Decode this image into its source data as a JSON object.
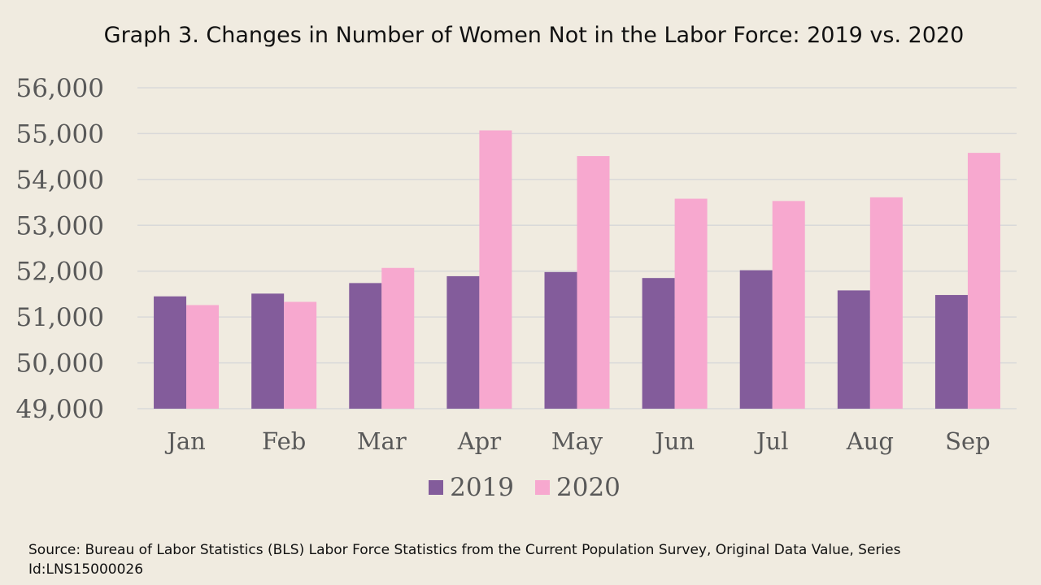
{
  "chart_data": {
    "type": "bar",
    "title": "Graph 3. Changes in Number of Women Not in the Labor Force: 2019 vs. 2020",
    "xlabel": "",
    "ylabel": "",
    "categories": [
      "Jan",
      "Feb",
      "Mar",
      "Apr",
      "May",
      "Jun",
      "Jul",
      "Aug",
      "Sep"
    ],
    "series": [
      {
        "name": "2019",
        "color": "#835c9b",
        "values": [
          51450,
          51510,
          51740,
          51890,
          51980,
          51850,
          52020,
          51580,
          51480
        ]
      },
      {
        "name": "2020",
        "color": "#f7a8cf",
        "values": [
          51260,
          51330,
          52070,
          55070,
          54510,
          53580,
          53530,
          53610,
          54580
        ]
      }
    ],
    "ylim": [
      49000,
      56000
    ],
    "yticks": [
      49000,
      50000,
      51000,
      52000,
      53000,
      54000,
      55000,
      56000
    ],
    "ytick_labels": [
      "49,000",
      "50,000",
      "51,000",
      "52,000",
      "53,000",
      "54,000",
      "55,000",
      "56,000"
    ],
    "grid": true,
    "legend_position": "bottom"
  },
  "source_note": "Source: Bureau of Labor Statistics (BLS) Labor Force Statistics from the Current Population Survey, Original Data Value, Series Id:LNS15000026",
  "colors": {
    "background": "#f0ebe0",
    "gridline": "#d9d9d9",
    "tick_text": "#595959"
  }
}
